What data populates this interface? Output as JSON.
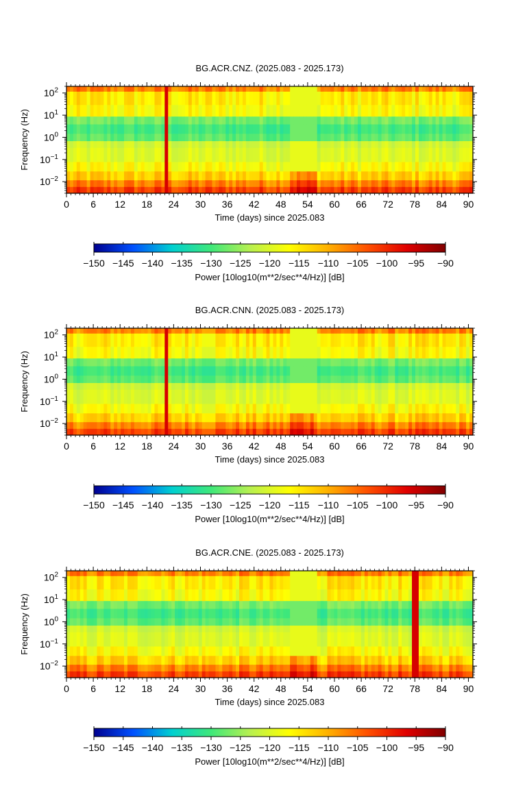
{
  "chart_data": [
    {
      "type": "heatmap",
      "title": "BG.ACR.CNZ. (2025.083 - 2025.173)",
      "xlabel": "Time (days) since 2025.083",
      "ylabel": "Frequency (Hz)",
      "xlim": [
        0,
        91
      ],
      "x_ticks": [
        "0",
        "6",
        "12",
        "18",
        "24",
        "30",
        "36",
        "42",
        "48",
        "54",
        "60",
        "66",
        "72",
        "78",
        "84",
        "90"
      ],
      "ylim": [
        0.003,
        200
      ],
      "y_scale": "log",
      "y_ticks": [
        {
          "base": "10",
          "exp": "2"
        },
        {
          "base": "10",
          "exp": "1"
        },
        {
          "base": "10",
          "exp": "0"
        },
        {
          "base": "10",
          "exp": "−1"
        },
        {
          "base": "10",
          "exp": "−2"
        }
      ],
      "colorbar": {
        "label": "Power [10log10(m**2/sec**4/Hz)] [dB]",
        "range": [
          -150,
          -90
        ],
        "ticks": [
          "−150",
          "−145",
          "−140",
          "−135",
          "−130",
          "−125",
          "−120",
          "−115",
          "−110",
          "−105",
          "−100",
          "−95",
          "−90"
        ]
      },
      "noise_gap_days": [
        50,
        56
      ],
      "event_spike_day": 22.5
    },
    {
      "type": "heatmap",
      "title": "BG.ACR.CNN. (2025.083 - 2025.173)",
      "xlabel": "Time (days) since 2025.083",
      "ylabel": "Frequency (Hz)",
      "xlim": [
        0,
        91
      ],
      "x_ticks": [
        "0",
        "6",
        "12",
        "18",
        "24",
        "30",
        "36",
        "42",
        "48",
        "54",
        "60",
        "66",
        "72",
        "78",
        "84",
        "90"
      ],
      "ylim": [
        0.003,
        200
      ],
      "y_scale": "log",
      "y_ticks": [
        {
          "base": "10",
          "exp": "2"
        },
        {
          "base": "10",
          "exp": "1"
        },
        {
          "base": "10",
          "exp": "0"
        },
        {
          "base": "10",
          "exp": "−1"
        },
        {
          "base": "10",
          "exp": "−2"
        }
      ],
      "colorbar": {
        "label": "Power [10log10(m**2/sec**4/Hz)] [dB]",
        "range": [
          -150,
          -90
        ],
        "ticks": [
          "−150",
          "−145",
          "−140",
          "−135",
          "−130",
          "−125",
          "−120",
          "−115",
          "−110",
          "−105",
          "−100",
          "−95",
          "−90"
        ]
      },
      "noise_gap_days": [
        50,
        56
      ],
      "event_spike_day": 22.5
    },
    {
      "type": "heatmap",
      "title": "BG.ACR.CNE. (2025.083 - 2025.173)",
      "xlabel": "Time (days) since 2025.083",
      "ylabel": "Frequency (Hz)",
      "xlim": [
        0,
        91
      ],
      "x_ticks": [
        "0",
        "6",
        "12",
        "18",
        "24",
        "30",
        "36",
        "42",
        "48",
        "54",
        "60",
        "66",
        "72",
        "78",
        "84",
        "90"
      ],
      "ylim": [
        0.003,
        200
      ],
      "y_scale": "log",
      "y_ticks": [
        {
          "base": "10",
          "exp": "2"
        },
        {
          "base": "10",
          "exp": "1"
        },
        {
          "base": "10",
          "exp": "0"
        },
        {
          "base": "10",
          "exp": "−1"
        },
        {
          "base": "10",
          "exp": "−2"
        }
      ],
      "colorbar": {
        "label": "Power [10log10(m**2/sec**4/Hz)] [dB]",
        "range": [
          -150,
          -90
        ],
        "ticks": [
          "−150",
          "−145",
          "−140",
          "−135",
          "−130",
          "−125",
          "−120",
          "−115",
          "−110",
          "−105",
          "−100",
          "−95",
          "−90"
        ]
      },
      "noise_gap_days": [
        50,
        56
      ],
      "event_spike_day": 78
    }
  ],
  "colormap": [
    "#00008f",
    "#0050ff",
    "#00d0d0",
    "#3fe87a",
    "#b8f050",
    "#ffff00",
    "#ffb000",
    "#ff5000",
    "#e00000",
    "#800000"
  ]
}
